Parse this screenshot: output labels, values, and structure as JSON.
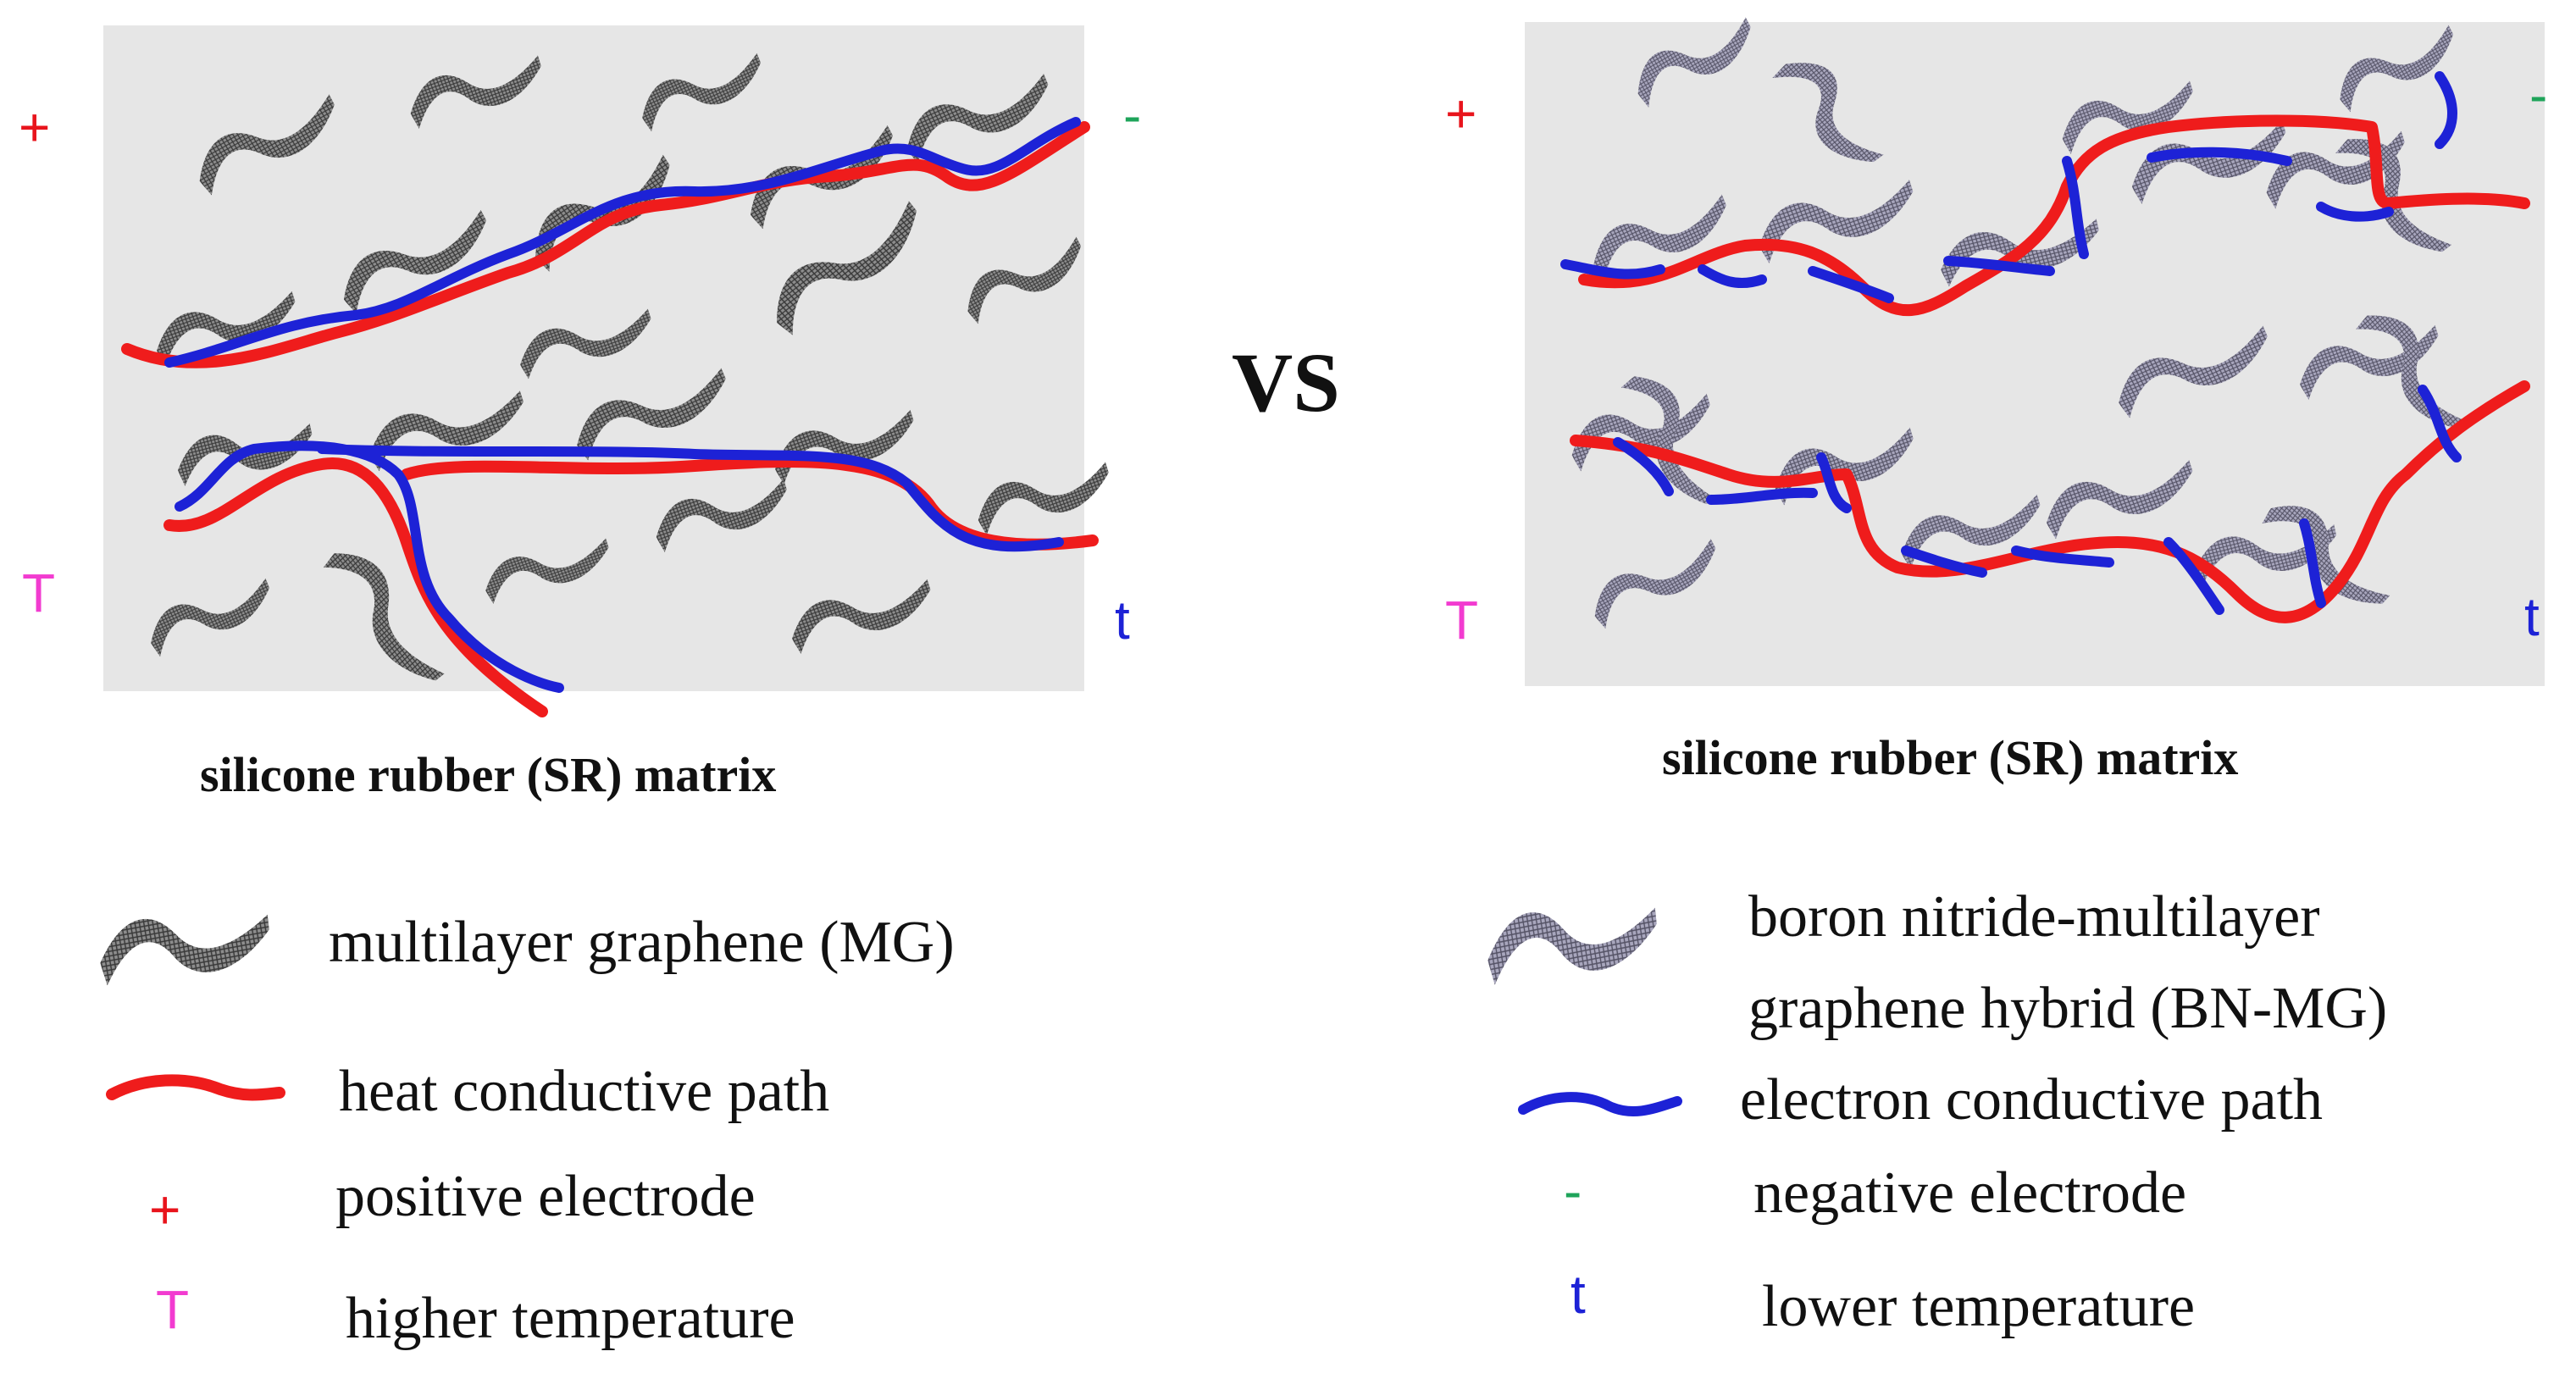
{
  "colors": {
    "panel_bg": "#e6e6e6",
    "heat_path": "#ef1c1c",
    "electron_path": "#1d22d6",
    "positive": "#e8141c",
    "negative": "#1ea45a",
    "higher_temp": "#f23bd0",
    "lower_temp": "#1d22d6",
    "flake_dark": "#6f6f6f",
    "flake_bn": "#8a86a6"
  },
  "left_panel": {
    "positive_symbol": "+",
    "negative_symbol": "-",
    "high_temp_symbol": "T",
    "low_temp_symbol": "t",
    "caption": "silicone rubber (SR) matrix",
    "flake_icon": "multilayer-graphene-flake"
  },
  "vs_label": "VS",
  "right_panel": {
    "positive_symbol": "+",
    "negative_symbol": "-",
    "high_temp_symbol": "T",
    "low_temp_symbol": "t",
    "caption": "silicone rubber (SR) matrix",
    "flake_icon": "bn-mg-hybrid-flake"
  },
  "legend_left": [
    {
      "symbol": "",
      "icon": "multilayer-graphene-flake",
      "text": "multilayer graphene (MG)"
    },
    {
      "symbol": "",
      "icon": "red-heat-path-line",
      "text": "heat conductive path"
    },
    {
      "symbol": "+",
      "icon": "",
      "text": "positive electrode"
    },
    {
      "symbol": "T",
      "icon": "",
      "text": "higher temperature"
    }
  ],
  "legend_right": [
    {
      "symbol": "",
      "icon": "bn-mg-hybrid-flake",
      "text_line1": "boron nitride-multilayer",
      "text_line2": "graphene hybrid (BN-MG)"
    },
    {
      "symbol": "",
      "icon": "blue-electron-path-line",
      "text": "electron conductive path"
    },
    {
      "symbol": "-",
      "icon": "",
      "text": "negative electrode"
    },
    {
      "symbol": "t",
      "icon": "",
      "text": "lower temperature"
    }
  ]
}
